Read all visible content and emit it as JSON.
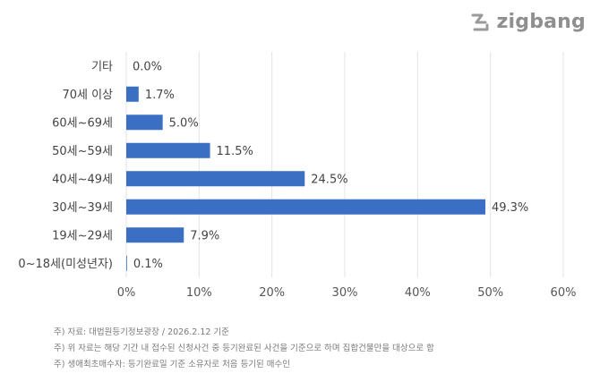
{
  "brand": {
    "name": "zigbang",
    "logo_icon": "zigbang-logo-icon",
    "color": "#8f8f8f"
  },
  "chart_data": {
    "type": "bar",
    "orientation": "horizontal",
    "categories": [
      "기타",
      "70세 이상",
      "60세~69세",
      "50세~59세",
      "40세~49세",
      "30세~39세",
      "19세~29세",
      "0~18세(미성년자)"
    ],
    "values": [
      0.0,
      1.7,
      5.0,
      11.5,
      24.5,
      49.3,
      7.9,
      0.1
    ],
    "value_labels": [
      "0.0%",
      "1.7%",
      "5.0%",
      "11.5%",
      "24.5%",
      "49.3%",
      "7.9%",
      "0.1%"
    ],
    "xlim": [
      0,
      60
    ],
    "xticks": [
      "0%",
      "10%",
      "20%",
      "30%",
      "40%",
      "50%",
      "60%"
    ],
    "grid": "vertical",
    "bar_color": "#3a6fc4",
    "title": "",
    "xlabel": "",
    "ylabel": ""
  },
  "notes": [
    "주) 자료: 대법원등기정보광장 / 2026.2.12 기준",
    "주) 위 자료는 해당 기간 내 접수된 신청사건 중 등기완료된 사건을 기준으로 하며 집합건물만을 대상으로 함",
    "주) 생애최초매수자: 등기완료일 기준 소유자로 처음 등기된 매수인"
  ]
}
